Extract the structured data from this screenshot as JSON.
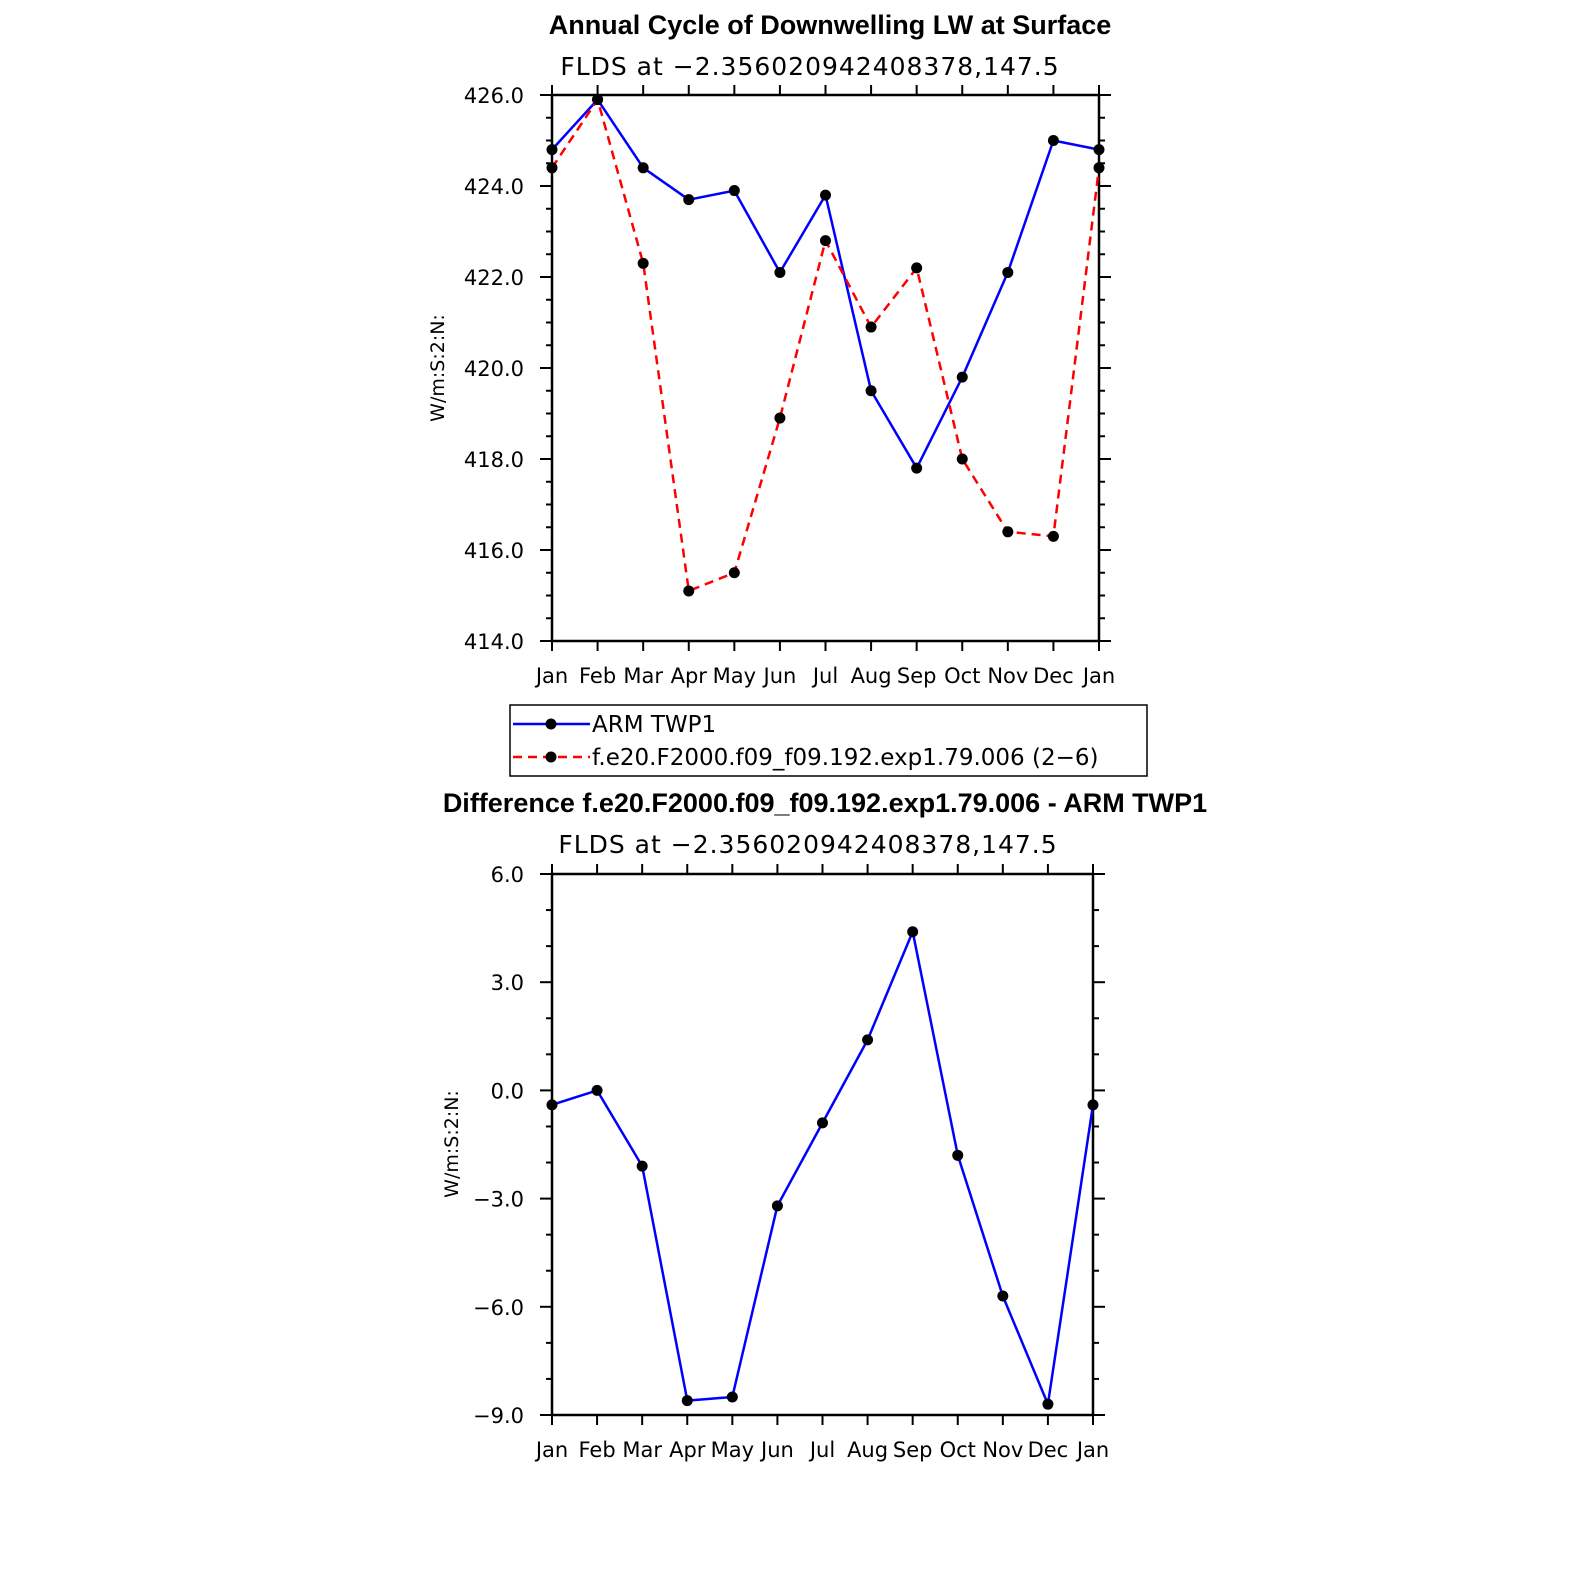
{
  "chart_data": [
    {
      "type": "line",
      "title": "Annual Cycle of Downwelling LW at Surface",
      "subtitle": "FLDS at −2.356020942408378,147.5",
      "ylabel": "W/m:S:2:N:",
      "categories": [
        "Jan",
        "Feb",
        "Mar",
        "Apr",
        "May",
        "Jun",
        "Jul",
        "Aug",
        "Sep",
        "Oct",
        "Nov",
        "Dec",
        "Jan"
      ],
      "ylim": [
        414.0,
        426.0
      ],
      "yticks": [
        "414.0",
        "416.0",
        "418.0",
        "420.0",
        "422.0",
        "424.0",
        "426.0"
      ],
      "series": [
        {
          "name": "ARM TWP1",
          "color": "#0000ff",
          "dash": "solid",
          "values": [
            424.8,
            425.9,
            424.4,
            423.7,
            423.9,
            422.1,
            423.8,
            419.5,
            417.8,
            419.8,
            422.1,
            425.0,
            424.8
          ]
        },
        {
          "name": "f.e20.F2000.f09_f09.192.exp1.79.006 (2−6)",
          "color": "#ff0000",
          "dash": "dashed",
          "values": [
            424.4,
            425.9,
            422.3,
            415.1,
            415.5,
            418.9,
            422.8,
            420.9,
            422.2,
            418.0,
            416.4,
            416.3,
            424.4
          ]
        }
      ],
      "legend_position": "bottom"
    },
    {
      "type": "line",
      "title": "Difference f.e20.F2000.f09_f09.192.exp1.79.006 - ARM TWP1",
      "subtitle": "FLDS at −2.356020942408378,147.5",
      "ylabel": "W/m:S:2:N:",
      "categories": [
        "Jan",
        "Feb",
        "Mar",
        "Apr",
        "May",
        "Jun",
        "Jul",
        "Aug",
        "Sep",
        "Oct",
        "Nov",
        "Dec",
        "Jan"
      ],
      "ylim": [
        -9.0,
        6.0
      ],
      "yticks": [
        "−9.0",
        "−6.0",
        "−3.0",
        "0.0",
        "3.0",
        "6.0"
      ],
      "series": [
        {
          "color": "#0000ff",
          "dash": "solid",
          "values": [
            -0.4,
            0.0,
            -2.1,
            -8.6,
            -8.5,
            -3.2,
            -0.9,
            1.4,
            4.4,
            -1.8,
            -5.7,
            -8.7,
            -0.4
          ]
        }
      ]
    }
  ]
}
